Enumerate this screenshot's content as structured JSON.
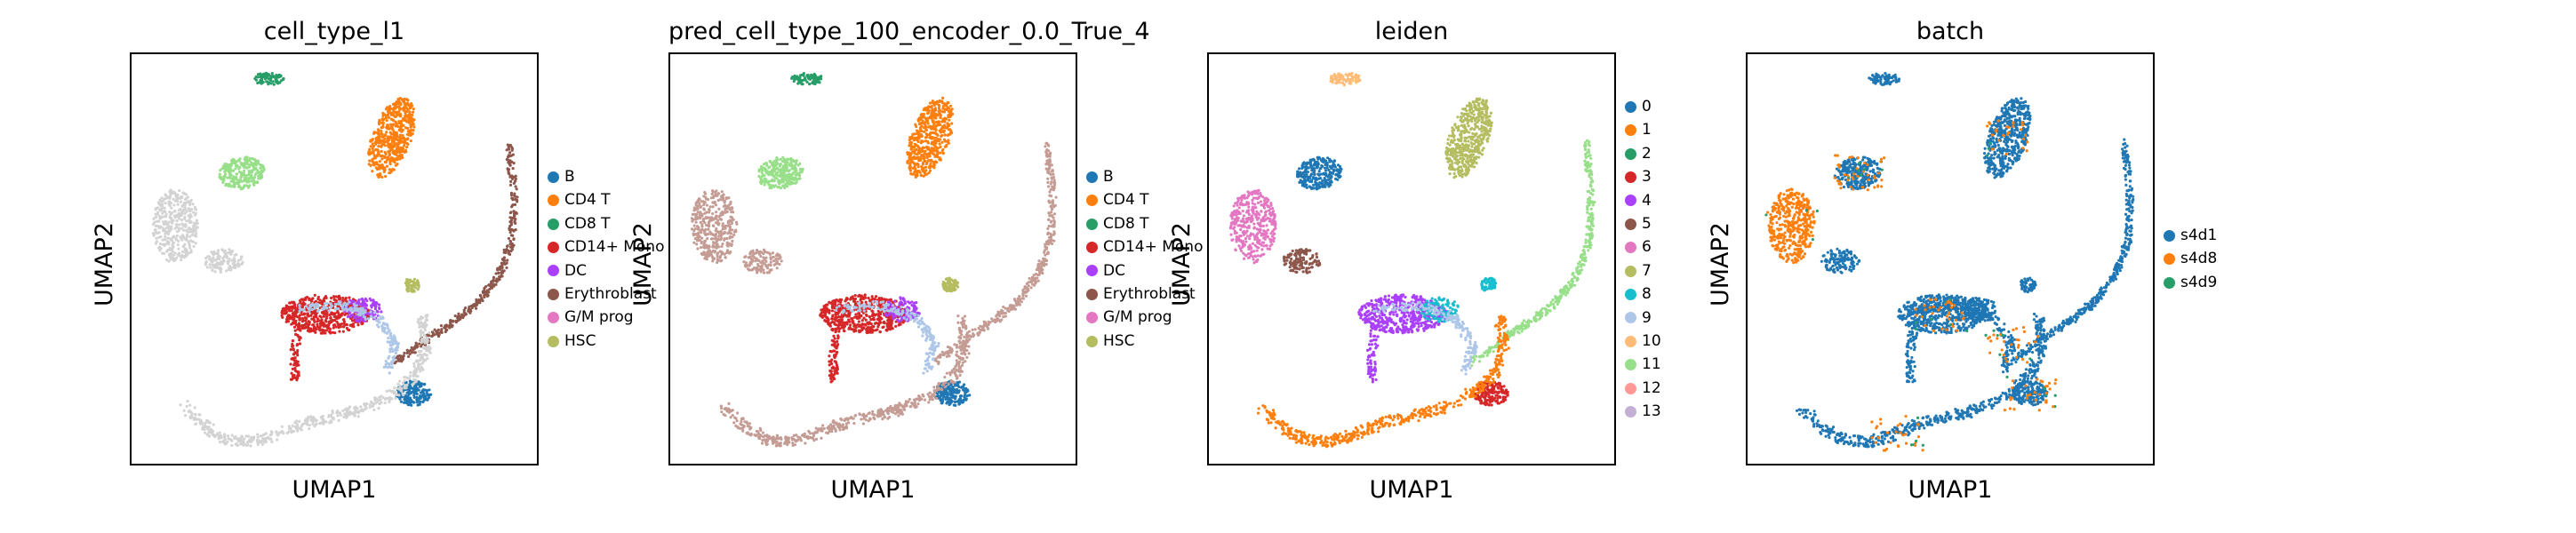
{
  "chart_data": [
    {
      "type": "scatter",
      "title": "cell_type_l1",
      "xlabel": "UMAP1",
      "ylabel": "UMAP2",
      "legend": {
        "placement": "right-outside",
        "entries": [
          {
            "name": "B",
            "color": "#1f77b4"
          },
          {
            "name": "CD4 T",
            "color": "#ff7f0e"
          },
          {
            "name": "CD8 T",
            "color": "#279e68"
          },
          {
            "name": "CD14+ Mono",
            "color": "#d62728"
          },
          {
            "name": "DC",
            "color": "#aa40fc"
          },
          {
            "name": "Erythroblast",
            "color": "#8c564b"
          },
          {
            "name": "G/M prog",
            "color": "#e377c2"
          },
          {
            "name": "HSC",
            "color": "#b5bd61"
          }
        ]
      },
      "regions": [
        {
          "category": "CD8 T",
          "region": "top-center"
        },
        {
          "category": "CD4 T",
          "region": "upper-right"
        },
        {
          "category": "CD8 T (light)",
          "region": "upper-left",
          "color": "#98df8a"
        },
        {
          "category": "unlabeled",
          "region": "left",
          "color": "#d3d3d3"
        },
        {
          "category": "Erythroblast",
          "region": "right-arm"
        },
        {
          "category": "G/M prog",
          "region": "right-arm"
        },
        {
          "category": "HSC",
          "region": "center-right"
        },
        {
          "category": "CD14+ Mono",
          "region": "center"
        },
        {
          "category": "DC",
          "region": "center"
        },
        {
          "category": "B",
          "region": "lower-right"
        },
        {
          "category": "unlabeled",
          "region": "bottom",
          "color": "#d3d3d3"
        }
      ]
    },
    {
      "type": "scatter",
      "title": "pred_cell_type_100_encoder_0.0_True_4",
      "xlabel": "UMAP1",
      "ylabel": "UMAP2",
      "legend": {
        "placement": "right-outside",
        "entries": [
          {
            "name": "B",
            "color": "#1f77b4"
          },
          {
            "name": "CD4 T",
            "color": "#ff7f0e"
          },
          {
            "name": "CD8 T",
            "color": "#279e68"
          },
          {
            "name": "CD14+ Mono",
            "color": "#d62728"
          },
          {
            "name": "DC",
            "color": "#aa40fc"
          },
          {
            "name": "Erythroblast",
            "color": "#8c564b"
          },
          {
            "name": "G/M prog",
            "color": "#e377c2"
          },
          {
            "name": "HSC",
            "color": "#b5bd61"
          }
        ]
      }
    },
    {
      "type": "scatter",
      "title": "leiden",
      "xlabel": "UMAP1",
      "ylabel": "UMAP2",
      "legend": {
        "placement": "right-outside",
        "entries": [
          {
            "name": "0",
            "color": "#1f77b4"
          },
          {
            "name": "1",
            "color": "#ff7f0e"
          },
          {
            "name": "2",
            "color": "#279e68"
          },
          {
            "name": "3",
            "color": "#d62728"
          },
          {
            "name": "4",
            "color": "#aa40fc"
          },
          {
            "name": "5",
            "color": "#8c564b"
          },
          {
            "name": "6",
            "color": "#e377c2"
          },
          {
            "name": "7",
            "color": "#b5bd61"
          },
          {
            "name": "8",
            "color": "#17becf"
          },
          {
            "name": "9",
            "color": "#aec7e8"
          },
          {
            "name": "10",
            "color": "#ffbb78"
          },
          {
            "name": "11",
            "color": "#98df8a"
          },
          {
            "name": "12",
            "color": "#ff9896"
          },
          {
            "name": "13",
            "color": "#c5b0d5"
          }
        ]
      }
    },
    {
      "type": "scatter",
      "title": "batch",
      "xlabel": "UMAP1",
      "ylabel": "UMAP2",
      "legend": {
        "placement": "right-outside",
        "entries": [
          {
            "name": "s4d1",
            "color": "#1f77b4"
          },
          {
            "name": "s4d8",
            "color": "#ff7f0e"
          },
          {
            "name": "s4d9",
            "color": "#279e68"
          }
        ]
      }
    }
  ]
}
